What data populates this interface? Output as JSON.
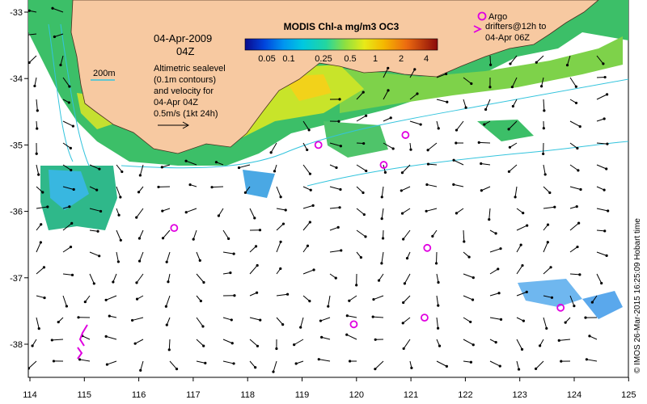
{
  "map": {
    "date_label": "04-Apr-2009",
    "time_label": "04Z",
    "scale_label": "200m",
    "legend_lines": [
      "Altimetric sealevel",
      "(0.1m contours)",
      "and velocity for",
      "04-Apr 04Z",
      "0.5m/s (1kt 24h)"
    ],
    "colorbar": {
      "title": "MODIS Chl-a mg/m3 OC3",
      "ticks": [
        "0.05",
        "0.1",
        "0.25",
        "0.5",
        "1",
        "2",
        "4"
      ],
      "colors": [
        "#0a0a8c",
        "#0033cc",
        "#0077ee",
        "#00b4f0",
        "#22d6a0",
        "#7ee04a",
        "#d8ea1a",
        "#f5c800",
        "#f59000",
        "#e24a10",
        "#b01010",
        "#7a0a0a"
      ]
    },
    "argo_label": "Argo",
    "drifter_lines": [
      "drifters@12h to",
      "04-Apr 06Z"
    ],
    "credit": "© IMOS 26-Mar-2015 16:25:09 Hobart time",
    "x_ticks": [
      "114",
      "115",
      "116",
      "117",
      "118",
      "119",
      "120",
      "121",
      "122",
      "123",
      "124",
      "125"
    ],
    "y_ticks": [
      "-33",
      "-34",
      "-35",
      "-36",
      "-37",
      "-38"
    ],
    "colors": {
      "land": "#f7c9a1",
      "argo": "#e000e0",
      "contour": "#33c4dd",
      "arrow": "#000000"
    },
    "argo_floats": [
      {
        "lon": 119.3,
        "lat": -35.0
      },
      {
        "lon": 120.9,
        "lat": -34.85
      },
      {
        "lon": 120.5,
        "lat": -35.3
      },
      {
        "lon": 116.65,
        "lat": -36.25
      },
      {
        "lon": 121.3,
        "lat": -36.55
      },
      {
        "lon": 119.95,
        "lat": -37.7
      },
      {
        "lon": 121.25,
        "lat": -37.6
      },
      {
        "lon": 123.75,
        "lat": -37.45
      }
    ]
  }
}
